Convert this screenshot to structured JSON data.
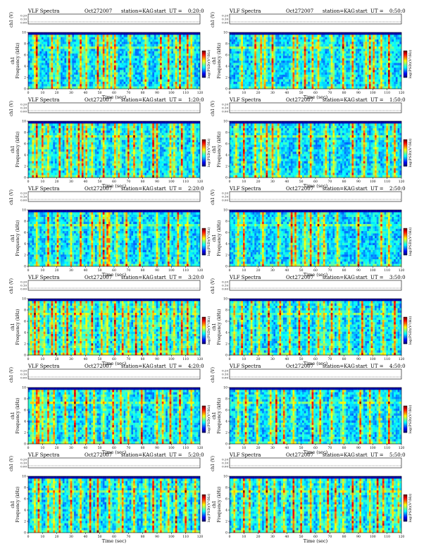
{
  "page": {
    "heading_prefix": "VLF Spectra",
    "date": "Oct272007",
    "station_text": "station=KAG",
    "start_text": "start",
    "ut_label": "UT ="
  },
  "labels": {
    "ch1_axis": "ch1 (V)",
    "panel_axis": "ch1",
    "frequency_axis": "Frequency (kHz)",
    "time_axis": "Time (sec)",
    "colorbar_axis": "log(PSD)(V²/Hz)"
  },
  "chart_data": [
    {
      "type": "heatmap",
      "title": "VLF Spectra",
      "start_ut": "0:20:0",
      "xlabel": "Time (sec)",
      "ylabel": "Frequency (kHz)",
      "xlim": [
        0,
        120
      ],
      "ylim": [
        0,
        10
      ],
      "x_ticks": [
        "0",
        "10",
        "20",
        "30",
        "40",
        "50",
        "60",
        "70",
        "80",
        "90",
        "100",
        "110",
        "120"
      ],
      "y_ticks": [
        "0",
        "2",
        "4",
        "6",
        "8",
        "10"
      ],
      "top_ticks": [
        "0.00",
        "0.10",
        "0.20"
      ],
      "colorbar": "log(PSD)(V²/Hz)",
      "bursts_sec": [
        4,
        6,
        16,
        20,
        28,
        36,
        41,
        48,
        52,
        55,
        58,
        60,
        72,
        82,
        93,
        98,
        104,
        107,
        112,
        114
      ]
    },
    {
      "type": "heatmap",
      "title": "VLF Spectra",
      "start_ut": "0:50:0",
      "xlabel": "Time (sec)",
      "ylabel": "Frequency (kHz)",
      "xlim": [
        0,
        120
      ],
      "ylim": [
        0,
        10
      ],
      "x_ticks": [
        "0",
        "10",
        "20",
        "30",
        "40",
        "50",
        "60",
        "70",
        "80",
        "90",
        "100",
        "110",
        "120"
      ],
      "y_ticks": [
        "0",
        "2",
        "4",
        "6",
        "8",
        "10"
      ],
      "top_ticks": [
        "0.00",
        "0.10",
        "0.20"
      ],
      "colorbar": "log(PSD)(V²/Hz)",
      "bursts_sec": [
        8,
        18,
        21,
        24,
        30,
        44,
        47,
        52,
        58,
        62,
        72,
        80,
        86,
        96,
        99,
        101,
        107,
        112
      ]
    },
    {
      "type": "heatmap",
      "title": "VLF Spectra",
      "start_ut": "1:20:0",
      "xlabel": "Time (sec)",
      "ylabel": "Frequency (kHz)",
      "xlim": [
        0,
        120
      ],
      "ylim": [
        0,
        10
      ],
      "x_ticks": [
        "0",
        "10",
        "20",
        "30",
        "40",
        "50",
        "60",
        "70",
        "80",
        "90",
        "100",
        "110",
        "120"
      ],
      "y_ticks": [
        "0",
        "2",
        "4",
        "6",
        "8",
        "10"
      ],
      "top_ticks": [
        "0.00",
        "0.10",
        "0.20"
      ],
      "colorbar": "log(PSD)(V²/Hz)",
      "bursts_sec": [
        3,
        5,
        9,
        13,
        22,
        27,
        29,
        35,
        38,
        41,
        45,
        53,
        60,
        64,
        70,
        74,
        80,
        87,
        91,
        100,
        103,
        108,
        116
      ]
    },
    {
      "type": "heatmap",
      "title": "VLF Spectra",
      "start_ut": "1:50:0",
      "xlabel": "Time (sec)",
      "ylabel": "Frequency (kHz)",
      "xlim": [
        0,
        120
      ],
      "ylim": [
        0,
        10
      ],
      "x_ticks": [
        "0",
        "10",
        "20",
        "30",
        "40",
        "50",
        "60",
        "70",
        "80",
        "90",
        "100",
        "110",
        "120"
      ],
      "y_ticks": [
        "0",
        "2",
        "4",
        "6",
        "8",
        "10"
      ],
      "top_ticks": [
        "0.00",
        "0.10",
        "0.20"
      ],
      "colorbar": "log(PSD)(V²/Hz)",
      "bursts_sec": [
        4,
        10,
        17,
        22,
        26,
        30,
        34,
        48,
        56,
        67,
        73,
        86,
        95,
        102,
        110,
        116
      ]
    },
    {
      "type": "heatmap",
      "title": "VLF Spectra",
      "start_ut": "2:20:0",
      "xlabel": "Time (sec)",
      "ylabel": "Frequency (kHz)",
      "xlim": [
        0,
        120
      ],
      "ylim": [
        0,
        10
      ],
      "x_ticks": [
        "0",
        "10",
        "20",
        "30",
        "40",
        "50",
        "60",
        "70",
        "80",
        "90",
        "100",
        "110",
        "120"
      ],
      "y_ticks": [
        "0",
        "2",
        "4",
        "6",
        "8",
        "10"
      ],
      "top_ticks": [
        "0.00",
        "0.10",
        "0.20"
      ],
      "colorbar": "log(PSD)(V²/Hz)",
      "bursts_sec": [
        6,
        14,
        20,
        30,
        37,
        44,
        50,
        52,
        55,
        57,
        62,
        69,
        78,
        91,
        98,
        105,
        112
      ]
    },
    {
      "type": "heatmap",
      "title": "VLF Spectra",
      "start_ut": "2:50:0",
      "xlabel": "Time (sec)",
      "ylabel": "Frequency (kHz)",
      "xlim": [
        0,
        120
      ],
      "ylim": [
        0,
        10
      ],
      "x_ticks": [
        "0",
        "10",
        "20",
        "30",
        "40",
        "50",
        "60",
        "70",
        "80",
        "90",
        "100",
        "110",
        "120"
      ],
      "y_ticks": [
        "0",
        "2",
        "4",
        "6",
        "8",
        "10"
      ],
      "top_ticks": [
        "0.00",
        "0.10",
        "0.20"
      ],
      "colorbar": "log(PSD)(V²/Hz)",
      "bursts_sec": [
        5,
        10,
        23,
        34,
        43,
        46,
        53,
        57,
        62,
        66,
        75,
        90,
        106,
        112
      ]
    },
    {
      "type": "heatmap",
      "title": "VLF Spectra",
      "start_ut": "3:20:0",
      "xlabel": "Time (sec)",
      "ylabel": "Frequency (kHz)",
      "xlim": [
        0,
        120
      ],
      "ylim": [
        0,
        10
      ],
      "x_ticks": [
        "0",
        "10",
        "20",
        "30",
        "40",
        "50",
        "60",
        "70",
        "80",
        "90",
        "100",
        "110",
        "120"
      ],
      "y_ticks": [
        "0",
        "2",
        "4",
        "6",
        "8",
        "10"
      ],
      "top_ticks": [
        "0.00",
        "0.10",
        "0.20"
      ],
      "colorbar": "log(PSD)(V²/Hz)",
      "bursts_sec": [
        2,
        4,
        7,
        11,
        16,
        19,
        24,
        27,
        33,
        37,
        40,
        44,
        51,
        55,
        60,
        66,
        70,
        75,
        79,
        84,
        88,
        93,
        97,
        103,
        108,
        112,
        117
      ]
    },
    {
      "type": "heatmap",
      "title": "VLF Spectra",
      "start_ut": "3:50:0",
      "xlabel": "Time (sec)",
      "ylabel": "Frequency (kHz)",
      "xlim": [
        0,
        120
      ],
      "ylim": [
        0,
        10
      ],
      "x_ticks": [
        "0",
        "10",
        "20",
        "30",
        "40",
        "50",
        "60",
        "70",
        "80",
        "90",
        "100",
        "110",
        "120"
      ],
      "y_ticks": [
        "0",
        "2",
        "4",
        "6",
        "8",
        "10"
      ],
      "top_ticks": [
        "0.00",
        "0.10",
        "0.20"
      ],
      "colorbar": "log(PSD)(V²/Hz)",
      "bursts_sec": [
        3,
        8,
        15,
        20,
        27,
        35,
        42,
        48,
        55,
        62,
        66,
        71,
        77,
        84,
        93,
        100,
        108,
        116
      ]
    },
    {
      "type": "heatmap",
      "title": "VLF Spectra",
      "start_ut": "4:20:0",
      "xlabel": "Time (sec)",
      "ylabel": "Frequency (kHz)",
      "xlim": [
        0,
        120
      ],
      "ylim": [
        0,
        10
      ],
      "x_ticks": [
        "0",
        "10",
        "20",
        "30",
        "40",
        "50",
        "60",
        "70",
        "80",
        "90",
        "100",
        "110",
        "120"
      ],
      "y_ticks": [
        "0",
        "2",
        "4",
        "6",
        "8",
        "10"
      ],
      "top_ticks": [
        "0.00",
        "0.10",
        "0.20"
      ],
      "colorbar": "log(PSD)(V²/Hz)",
      "bursts_sec": [
        3,
        5,
        7,
        9,
        13,
        18,
        25,
        32,
        40,
        46,
        53,
        59,
        65,
        70,
        80,
        90,
        94,
        100,
        106,
        115
      ]
    },
    {
      "type": "heatmap",
      "title": "VLF Spectra",
      "start_ut": "4:50:0",
      "xlabel": "Time (sec)",
      "ylabel": "Frequency (kHz)",
      "xlim": [
        0,
        120
      ],
      "ylim": [
        0,
        10
      ],
      "x_ticks": [
        "0",
        "10",
        "20",
        "30",
        "40",
        "50",
        "60",
        "70",
        "80",
        "90",
        "100",
        "110",
        "120"
      ],
      "y_ticks": [
        "0",
        "2",
        "4",
        "6",
        "8",
        "10"
      ],
      "top_ticks": [
        "0.00",
        "0.10",
        "0.20"
      ],
      "colorbar": "log(PSD)(V²/Hz)",
      "bursts_sec": [
        5,
        11,
        19,
        28,
        33,
        38,
        45,
        58,
        64,
        72,
        80,
        92,
        98,
        105,
        112
      ]
    },
    {
      "type": "heatmap",
      "title": "VLF Spectra",
      "start_ut": "5:20:0",
      "xlabel": "Time (sec)",
      "ylabel": "Frequency (kHz)",
      "xlim": [
        0,
        120
      ],
      "ylim": [
        0,
        10
      ],
      "x_ticks": [
        "0",
        "10",
        "20",
        "30",
        "40",
        "50",
        "60",
        "70",
        "80",
        "90",
        "100",
        "110",
        "120"
      ],
      "y_ticks": [
        "0",
        "2",
        "4",
        "6",
        "8",
        "10"
      ],
      "top_ticks": [
        "0.00",
        "0.10",
        "0.20"
      ],
      "colorbar": "log(PSD)(V²/Hz)",
      "bursts_sec": [
        4,
        7,
        14,
        18,
        22,
        30,
        36,
        43,
        49,
        56,
        64,
        66,
        74,
        82,
        87,
        93,
        99,
        104,
        110,
        117
      ]
    },
    {
      "type": "heatmap",
      "title": "VLF Spectra",
      "start_ut": "5:50:0",
      "xlabel": "Time (sec)",
      "ylabel": "Frequency (kHz)",
      "xlim": [
        0,
        120
      ],
      "ylim": [
        0,
        10
      ],
      "x_ticks": [
        "0",
        "10",
        "20",
        "30",
        "40",
        "50",
        "60",
        "70",
        "80",
        "90",
        "100",
        "110",
        "120"
      ],
      "y_ticks": [
        "0",
        "2",
        "4",
        "6",
        "8",
        "10"
      ],
      "top_ticks": [
        "0.00",
        "0.10",
        "0.20"
      ],
      "colorbar": "log(PSD)(V²/Hz)",
      "bursts_sec": [
        3,
        9,
        14,
        20,
        26,
        31,
        38,
        44,
        50,
        57,
        63,
        69,
        74,
        80,
        86,
        92,
        98,
        104,
        108,
        114,
        119
      ]
    }
  ]
}
